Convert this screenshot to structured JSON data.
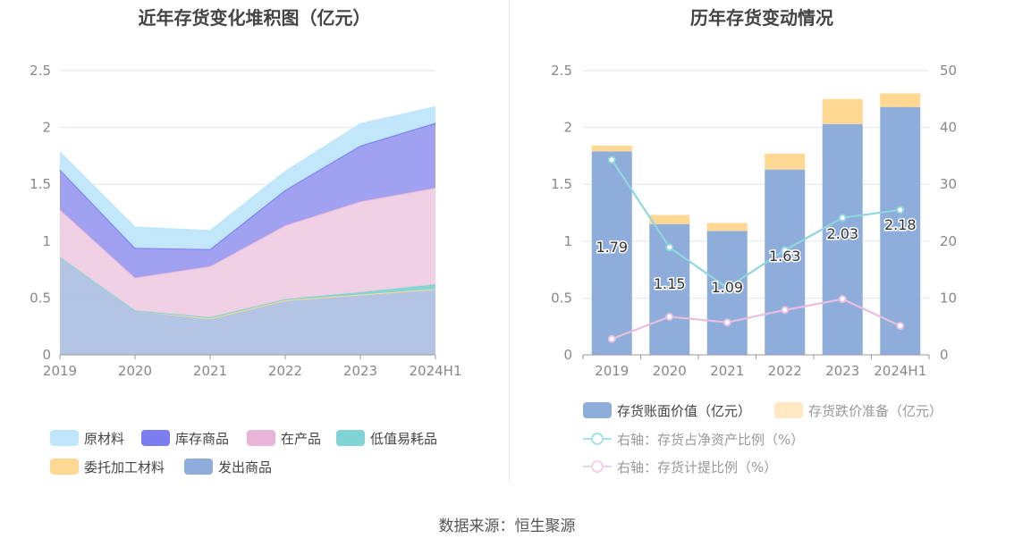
{
  "left": {
    "title": "近年存货变化堆积图（亿元）",
    "legend": [
      "原材料",
      "库存商品",
      "在产品",
      "低值易耗品",
      "委托加工材料",
      "发出商品"
    ]
  },
  "right": {
    "title": "历年存货变动情况",
    "legend": [
      "存货账面价值（亿元）",
      "存货跌价准备（亿元）",
      "右轴：存货占净资产比例（%）",
      "右轴：存货计提比例（%）"
    ]
  },
  "source": "数据来源：恒生聚源",
  "colors": {
    "原材料": "#bfe6fb",
    "库存商品": "#9b9cf0",
    "在产品": "#eecde3",
    "低值易耗品": "#7fd4d4",
    "委托加工材料": "#ffd993",
    "发出商品": "#afc1e3",
    "book_value": "#8eaddb",
    "impairment": "#ffd993",
    "ratio_net_assets": "#8fd6de",
    "provision_ratio": "#e8bfdf",
    "grid": "#e2e6f0",
    "axis_text": "#888888"
  },
  "chart_data": [
    {
      "type": "area",
      "stacked": true,
      "title": "近年存货变化堆积图（亿元）",
      "x": [
        "2019",
        "2020",
        "2021",
        "2022",
        "2023",
        "2024H1"
      ],
      "ylim": [
        0,
        2.5
      ],
      "yticks": [
        "0",
        "0.5",
        "1",
        "1.5",
        "2",
        "2.5"
      ],
      "legend_position": "bottom",
      "grid": true,
      "series": [
        {
          "name": "发出商品",
          "values": [
            0.86,
            0.39,
            0.32,
            0.48,
            0.53,
            0.58
          ]
        },
        {
          "name": "委托加工材料",
          "values": [
            0.0,
            0.0,
            0.0,
            0.0,
            0.0,
            0.0
          ]
        },
        {
          "name": "低值易耗品",
          "values": [
            0.0,
            0.0,
            0.01,
            0.01,
            0.02,
            0.04
          ]
        },
        {
          "name": "在产品",
          "values": [
            0.42,
            0.29,
            0.45,
            0.65,
            0.8,
            0.85
          ]
        },
        {
          "name": "库存商品",
          "values": [
            0.35,
            0.26,
            0.15,
            0.31,
            0.49,
            0.57
          ]
        },
        {
          "name": "原材料",
          "values": [
            0.15,
            0.18,
            0.16,
            0.16,
            0.19,
            0.14
          ]
        }
      ]
    },
    {
      "type": "bar",
      "stacked": true,
      "title": "历年存货变动情况",
      "categories": [
        "2019",
        "2020",
        "2021",
        "2022",
        "2023",
        "2024H1"
      ],
      "ylim": [
        0,
        2.5
      ],
      "yticks": [
        "0",
        "0.5",
        "1",
        "1.5",
        "2",
        "2.5"
      ],
      "y2lim": [
        0,
        50
      ],
      "y2ticks": [
        "0",
        "10",
        "20",
        "30",
        "40",
        "50"
      ],
      "legend_position": "bottom",
      "grid": true,
      "series": [
        {
          "name": "存货账面价值（亿元）",
          "type": "bar",
          "axis": "left",
          "values": [
            1.79,
            1.15,
            1.09,
            1.63,
            2.03,
            2.18
          ],
          "labels": [
            "1.79",
            "1.15",
            "1.09",
            "1.63",
            "2.03",
            "2.18"
          ]
        },
        {
          "name": "存货跌价准备（亿元）",
          "type": "bar",
          "axis": "left",
          "values": [
            0.05,
            0.08,
            0.07,
            0.14,
            0.22,
            0.12
          ]
        },
        {
          "name": "右轴：存货占净资产比例（%）",
          "type": "line",
          "axis": "right",
          "values": [
            34.3,
            18.9,
            11.8,
            18.4,
            24.1,
            25.5
          ]
        },
        {
          "name": "右轴：存货计提比例（%）",
          "type": "line",
          "axis": "right",
          "values": [
            2.8,
            6.7,
            5.7,
            7.9,
            9.8,
            5.1
          ]
        }
      ]
    }
  ]
}
